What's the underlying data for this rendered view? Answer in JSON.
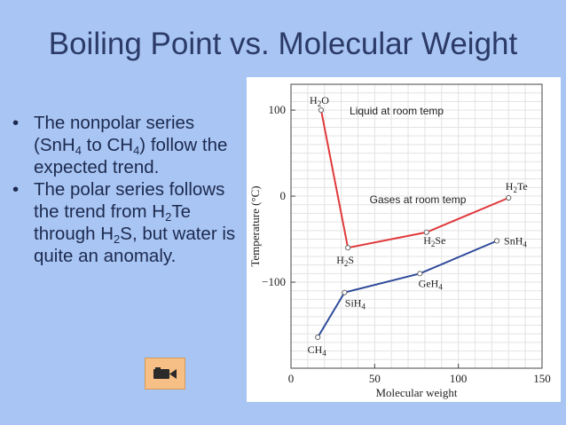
{
  "slide": {
    "title": "Boiling Point vs. Molecular Weight",
    "bullets": [
      {
        "text": "The nonpolar series (SnH4 to CH4) follow the expected trend."
      },
      {
        "text": "The polar series follows the trend from H2Te through H2S, but water is quite an anomaly."
      }
    ]
  },
  "video_button": {
    "icon": "video-camera-icon"
  },
  "chart_data": {
    "type": "line",
    "xlabel": "Molecular weight",
    "ylabel": "Temperature (°C)",
    "xlim": [
      0,
      150
    ],
    "ylim": [
      -200,
      130
    ],
    "xticks": [
      0,
      50,
      100,
      150
    ],
    "yticks": [
      100,
      0,
      -100
    ],
    "ytick_labels": [
      "100",
      "0",
      "−100"
    ],
    "grid": true,
    "series": [
      {
        "color": "#e0393b",
        "points": [
          {
            "x": 18,
            "y": 100,
            "label": "H2O"
          },
          {
            "x": 34,
            "y": -60,
            "label": "H2S"
          },
          {
            "x": 81,
            "y": -42,
            "label": "H2Se"
          },
          {
            "x": 130,
            "y": -2,
            "label": "H2Te"
          }
        ]
      },
      {
        "color": "#2f4a9a",
        "points": [
          {
            "x": 16,
            "y": -164,
            "label": "CH4"
          },
          {
            "x": 32,
            "y": -112,
            "label": "SiH4"
          },
          {
            "x": 77,
            "y": -90,
            "label": "GeH4"
          },
          {
            "x": 123,
            "y": -52,
            "label": "SnH4"
          }
        ]
      }
    ],
    "annotations": [
      {
        "text": "Liquid at room temp"
      },
      {
        "text": "Gases at room temp"
      }
    ]
  }
}
